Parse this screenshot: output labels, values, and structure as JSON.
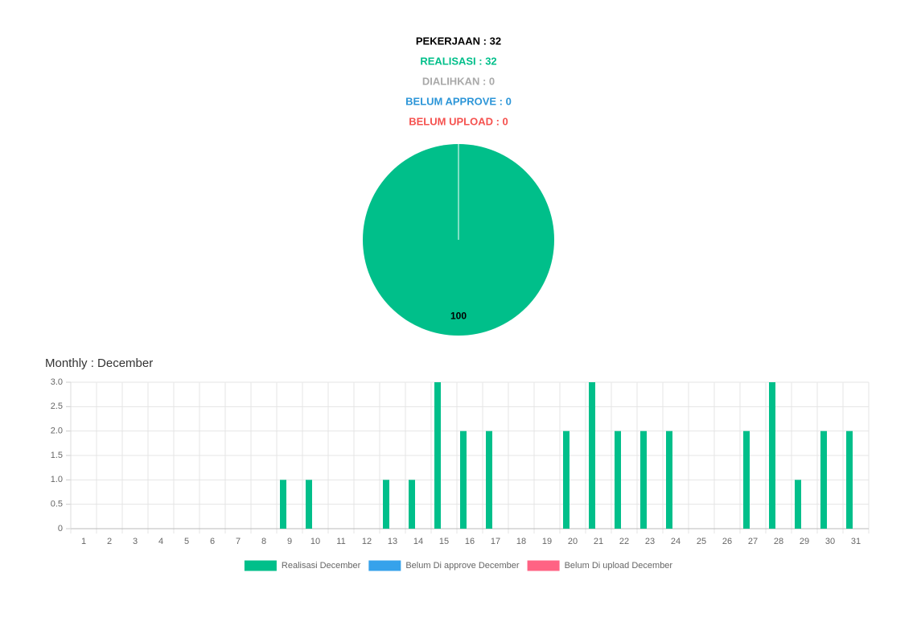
{
  "summary": [
    {
      "text": "PEKERJAAN : 32",
      "color": "#000000"
    },
    {
      "text": "REALISASI : 32",
      "color": "#00bf8a"
    },
    {
      "text": "DIALIHKAN : 0",
      "color": "#a9a9a9"
    },
    {
      "text": "BELUM APPROVE : 0",
      "color": "#2d96d8"
    },
    {
      "text": "BELUM UPLOAD : 0",
      "color": "#f5524f"
    }
  ],
  "chart_data": [
    {
      "type": "pie",
      "values": [
        100
      ],
      "colors": [
        "#00bf8a"
      ]
    },
    {
      "type": "bar",
      "title": "Monthly : December",
      "categories": [
        "1",
        "2",
        "3",
        "4",
        "5",
        "6",
        "7",
        "8",
        "9",
        "10",
        "11",
        "12",
        "13",
        "14",
        "15",
        "16",
        "17",
        "18",
        "19",
        "20",
        "21",
        "22",
        "23",
        "24",
        "25",
        "26",
        "27",
        "28",
        "29",
        "30",
        "31"
      ],
      "series": [
        {
          "name": "Realisasi December",
          "color": "#00bf8a",
          "values": [
            0,
            0,
            0,
            0,
            0,
            0,
            0,
            0,
            1,
            1,
            0,
            0,
            1,
            1,
            3,
            2,
            2,
            0,
            0,
            2,
            3,
            2,
            2,
            2,
            0,
            0,
            2,
            3,
            1,
            2,
            2
          ]
        },
        {
          "name": "Belum Di approve December",
          "color": "#36a2eb",
          "values": [
            0,
            0,
            0,
            0,
            0,
            0,
            0,
            0,
            0,
            0,
            0,
            0,
            0,
            0,
            0,
            0,
            0,
            0,
            0,
            0,
            0,
            0,
            0,
            0,
            0,
            0,
            0,
            0,
            0,
            0,
            0
          ]
        },
        {
          "name": "Belum Di upload December",
          "color": "#ff6384",
          "values": [
            0,
            0,
            0,
            0,
            0,
            0,
            0,
            0,
            0,
            0,
            0,
            0,
            0,
            0,
            0,
            0,
            0,
            0,
            0,
            0,
            0,
            0,
            0,
            0,
            0,
            0,
            0,
            0,
            0,
            0,
            0
          ]
        }
      ],
      "ylim": [
        0,
        3
      ],
      "yticks": [
        0,
        0.5,
        {
          "value": 1,
          "label": "1.0"
        },
        1.5,
        {
          "value": 2,
          "label": "2.0"
        },
        2.5,
        {
          "value": 3,
          "label": "3.0"
        }
      ],
      "grid": true,
      "legend": "bottom"
    }
  ]
}
